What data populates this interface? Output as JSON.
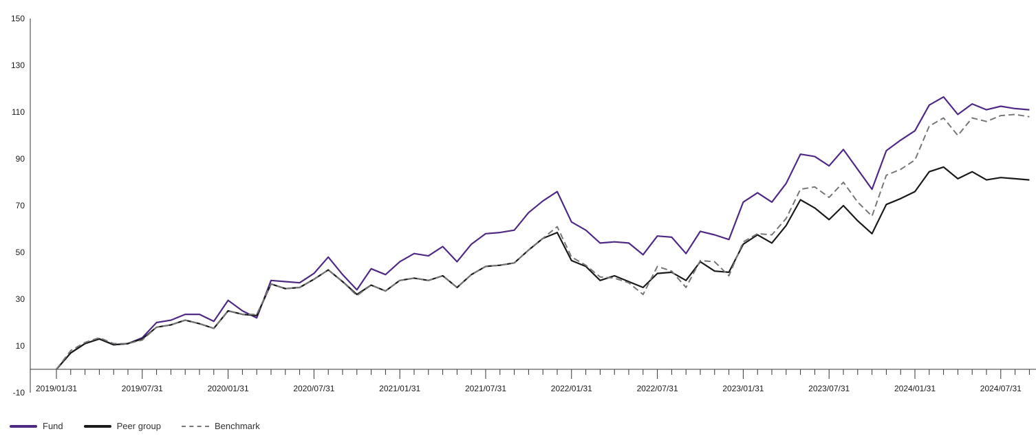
{
  "chart_data": {
    "type": "line",
    "x": [
      "2019/01/31",
      "2019/02/28",
      "2019/03/31",
      "2019/04/30",
      "2019/05/31",
      "2019/06/30",
      "2019/07/31",
      "2019/08/31",
      "2019/09/30",
      "2019/10/31",
      "2019/11/30",
      "2019/12/31",
      "2020/01/31",
      "2020/02/29",
      "2020/03/31",
      "2020/04/30",
      "2020/05/31",
      "2020/06/30",
      "2020/07/31",
      "2020/08/31",
      "2020/09/30",
      "2020/10/31",
      "2020/11/30",
      "2020/12/31",
      "2021/01/31",
      "2021/02/28",
      "2021/03/31",
      "2021/04/30",
      "2021/05/31",
      "2021/06/30",
      "2021/07/31",
      "2021/08/31",
      "2021/09/30",
      "2021/10/31",
      "2021/11/30",
      "2021/12/31",
      "2022/01/31",
      "2022/02/28",
      "2022/03/31",
      "2022/04/30",
      "2022/05/31",
      "2022/06/30",
      "2022/07/31",
      "2022/08/31",
      "2022/09/30",
      "2022/10/31",
      "2022/11/30",
      "2022/12/31",
      "2023/01/31",
      "2023/02/28",
      "2023/03/31",
      "2023/04/30",
      "2023/05/31",
      "2023/06/30",
      "2023/07/31",
      "2023/08/31",
      "2023/09/30",
      "2023/10/31",
      "2023/11/30",
      "2023/12/31",
      "2024/01/31",
      "2024/02/29",
      "2024/03/31",
      "2024/04/30",
      "2024/05/31",
      "2024/06/30",
      "2024/07/31",
      "2024/08/31",
      "2024/09/30"
    ],
    "x_tick_labels": [
      "2019/01/31",
      "2019/07/31",
      "2020/01/31",
      "2020/07/31",
      "2021/01/31",
      "2021/07/31",
      "2022/01/31",
      "2022/07/31",
      "2023/01/31",
      "2023/07/31",
      "2024/01/31",
      "2024/07/31"
    ],
    "y_tick_labels": [
      "-10",
      "10",
      "30",
      "50",
      "70",
      "90",
      "110",
      "130",
      "150"
    ],
    "ylim": [
      -10,
      150
    ],
    "title": "",
    "xlabel": "",
    "ylabel": "",
    "grid": false,
    "legend_position": "bottom-left",
    "series": [
      {
        "name": "Fund",
        "color": "#4e2a84",
        "style": "solid",
        "values": [
          0,
          7,
          11,
          13,
          10.5,
          11,
          13.5,
          20,
          21,
          23.5,
          23.5,
          20.5,
          29.5,
          25,
          22,
          38,
          37.5,
          37,
          41,
          48,
          40.5,
          34,
          43,
          40.5,
          46,
          49.5,
          48.5,
          52.5,
          46,
          53.5,
          58,
          58.5,
          59.5,
          67,
          72,
          76,
          63,
          59.5,
          54,
          54.5,
          54,
          49,
          57,
          56.5,
          49.5,
          59,
          57.5,
          55.5,
          71.5,
          75.5,
          71.5,
          79.5,
          92,
          91,
          87,
          94,
          85.5,
          77,
          93.5,
          98,
          102,
          113,
          116.5,
          109,
          113.5,
          111,
          112.5,
          111.5,
          111
        ]
      },
      {
        "name": "Peer group",
        "color": "#1a1a1a",
        "style": "solid",
        "values": [
          0,
          7,
          11,
          13,
          10.5,
          11,
          13,
          18,
          19,
          21,
          19.5,
          17.5,
          25,
          23.5,
          23,
          36.5,
          34.5,
          35,
          38.5,
          42.5,
          37.5,
          32,
          36,
          33.5,
          38,
          39,
          38,
          40,
          35,
          40.5,
          44,
          44.5,
          45.5,
          51,
          56,
          58.5,
          46.5,
          44,
          38,
          40,
          37.5,
          35,
          41,
          41.5,
          38,
          46,
          42,
          41.5,
          53.5,
          57.5,
          54,
          61.5,
          72.5,
          69,
          64,
          70,
          63.5,
          58,
          70.5,
          73,
          76,
          84.5,
          86.5,
          81.5,
          84.5,
          81,
          82,
          81.5,
          81
        ]
      },
      {
        "name": "Benchmark",
        "color": "#777777",
        "style": "dashed",
        "values": [
          0,
          8,
          11.5,
          13.5,
          11,
          11,
          12.5,
          18,
          19,
          21,
          19.5,
          17.5,
          25,
          23.5,
          23.5,
          36.5,
          34.5,
          35,
          38.5,
          42.5,
          37.5,
          31.5,
          36,
          33.5,
          38,
          39,
          38,
          40,
          35,
          40.5,
          44,
          44.5,
          45.5,
          51,
          56,
          61,
          48,
          44.5,
          39.5,
          39,
          37,
          32,
          44,
          42,
          35,
          46.5,
          46,
          40,
          54.5,
          58,
          57.5,
          64.5,
          77,
          78,
          73.5,
          80,
          71.5,
          65.5,
          83,
          85.5,
          89.5,
          104,
          107.5,
          100,
          107.5,
          106,
          108.5,
          109,
          108
        ]
      }
    ]
  }
}
